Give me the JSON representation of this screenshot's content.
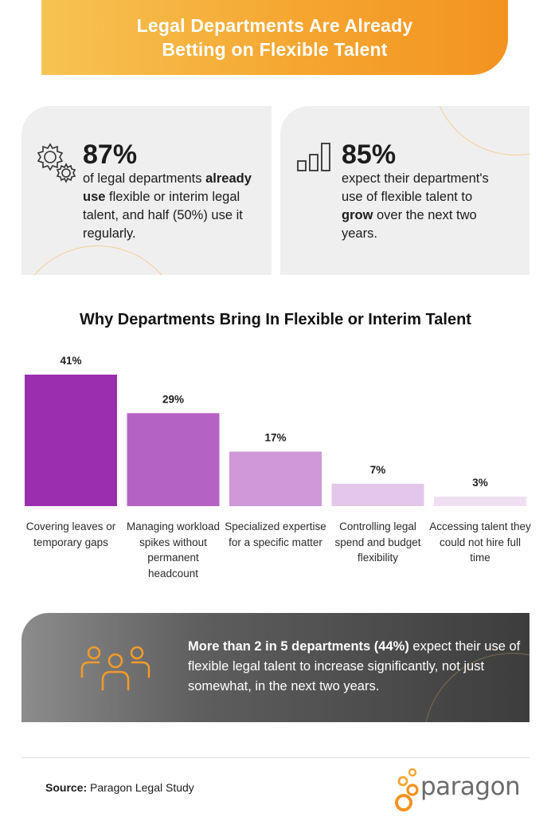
{
  "header": {
    "title": "Legal Departments Are Already Betting on Flexible Talent"
  },
  "stats": [
    {
      "icon": "gears-icon",
      "number": "87%",
      "text_before": "of legal departments ",
      "bold": "already use",
      "text_after": " flexible or interim legal talent, and half (50%) use it regularly."
    },
    {
      "icon": "bar-growth-icon",
      "number": "85%",
      "text_before": "expect their department's use of flexible talent to ",
      "bold": "grow",
      "text_after": " over the next two years."
    }
  ],
  "chart_data": {
    "type": "bar",
    "title": "Why Departments Bring In Flexible or Interim Talent",
    "categories": [
      "Covering leaves or temporary gaps",
      "Managing workload spikes without permanent headcount",
      "Specialized expertise for a specific matter",
      "Controlling legal spend and budget flexibility",
      "Accessing talent they could not hire full time"
    ],
    "values": [
      41,
      29,
      17,
      7,
      3
    ],
    "value_labels": [
      "41%",
      "29%",
      "17%",
      "7%",
      "3%"
    ],
    "colors": [
      "#9b2daf",
      "#b462c3",
      "#cf98d8",
      "#e5c6eb",
      "#f0dff3"
    ],
    "ylim": [
      0,
      41
    ],
    "grid": false,
    "legend": "none"
  },
  "callout": {
    "icon": "team-icon",
    "bold": "More than 2 in 5 departments (44%)",
    "text": " expect their use of flexible legal talent to increase significantly, not just somewhat, in the next two years."
  },
  "footer": {
    "source_label": "Source:",
    "source_text": "Paragon Legal Study",
    "logo_text": "paragon"
  },
  "colors": {
    "accent_orange": "#f5a631",
    "purple_dark": "#9b2daf"
  }
}
